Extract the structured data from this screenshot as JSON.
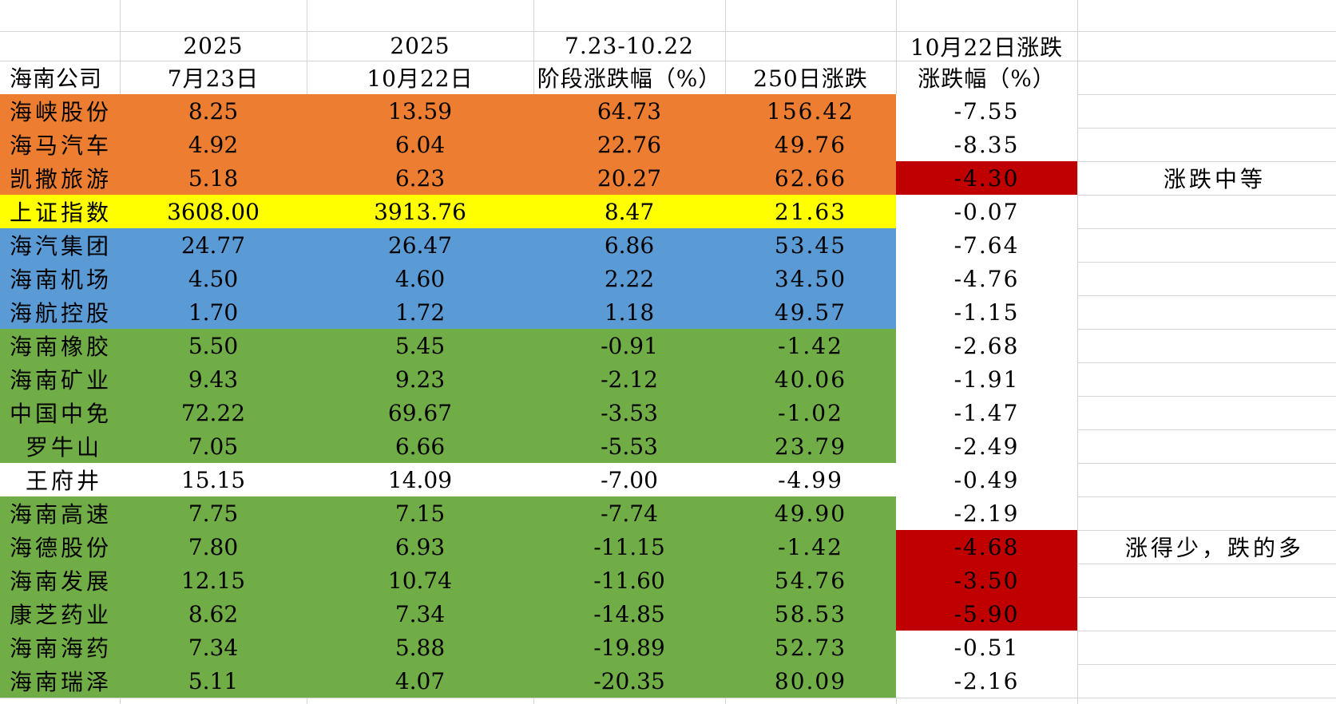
{
  "header": {
    "row1": [
      "",
      "2025",
      "2025",
      "7.23-10.22",
      "",
      "10月22日涨跌"
    ],
    "row2": [
      "海南公司",
      "7月23日",
      "10月22日",
      "阶段涨跌幅（%）",
      "250日涨跌",
      "涨跌幅（%）"
    ]
  },
  "rows": [
    {
      "name": "海峡股份",
      "v1": "8.25",
      "v2": "13.59",
      "v3": "64.73",
      "v4": "156.42",
      "v5": "-7.55",
      "fill": "#ED7D31",
      "v5_fill": "#FFFFFF"
    },
    {
      "name": "海马汽车",
      "v1": "4.92",
      "v2": "6.04",
      "v3": "22.76",
      "v4": "49.76",
      "v5": "-8.35",
      "fill": "#ED7D31",
      "v5_fill": "#FFFFFF"
    },
    {
      "name": "凯撒旅游",
      "v1": "5.18",
      "v2": "6.23",
      "v3": "20.27",
      "v4": "62.66",
      "v5": "-4.30",
      "fill": "#ED7D31",
      "v5_fill": "#C00000"
    },
    {
      "name": "上证指数",
      "v1": "3608.00",
      "v2": "3913.76",
      "v3": "8.47",
      "v4": "21.63",
      "v5": "-0.07",
      "fill": "#FFFF00",
      "v5_fill": "#FFFFFF"
    },
    {
      "name": "海汽集团",
      "v1": "24.77",
      "v2": "26.47",
      "v3": "6.86",
      "v4": "53.45",
      "v5": "-7.64",
      "fill": "#5B9BD5",
      "v5_fill": "#FFFFFF"
    },
    {
      "name": "海南机场",
      "v1": "4.50",
      "v2": "4.60",
      "v3": "2.22",
      "v4": "34.50",
      "v5": "-4.76",
      "fill": "#5B9BD5",
      "v5_fill": "#FFFFFF"
    },
    {
      "name": "海航控股",
      "v1": "1.70",
      "v2": "1.72",
      "v3": "1.18",
      "v4": "49.57",
      "v5": "-1.15",
      "fill": "#5B9BD5",
      "v5_fill": "#FFFFFF"
    },
    {
      "name": "海南橡胶",
      "v1": "5.50",
      "v2": "5.45",
      "v3": "-0.91",
      "v4": "-1.42",
      "v5": "-2.68",
      "fill": "#70AD47",
      "v5_fill": "#FFFFFF"
    },
    {
      "name": "海南矿业",
      "v1": "9.43",
      "v2": "9.23",
      "v3": "-2.12",
      "v4": "40.06",
      "v5": "-1.91",
      "fill": "#70AD47",
      "v5_fill": "#FFFFFF"
    },
    {
      "name": "中国中免",
      "v1": "72.22",
      "v2": "69.67",
      "v3": "-3.53",
      "v4": "-1.02",
      "v5": "-1.47",
      "fill": "#70AD47",
      "v5_fill": "#FFFFFF"
    },
    {
      "name": "罗牛山",
      "v1": "7.05",
      "v2": "6.66",
      "v3": "-5.53",
      "v4": "23.79",
      "v5": "-2.49",
      "fill": "#70AD47",
      "v5_fill": "#FFFFFF"
    },
    {
      "name": "王府井",
      "v1": "15.15",
      "v2": "14.09",
      "v3": "-7.00",
      "v4": "-4.99",
      "v5": "-0.49",
      "fill": "#FFFFFF",
      "v5_fill": "#FFFFFF"
    },
    {
      "name": "海南高速",
      "v1": "7.75",
      "v2": "7.15",
      "v3": "-7.74",
      "v4": "49.90",
      "v5": "-2.19",
      "fill": "#70AD47",
      "v5_fill": "#FFFFFF"
    },
    {
      "name": "海德股份",
      "v1": "7.80",
      "v2": "6.93",
      "v3": "-11.15",
      "v4": "-1.42",
      "v5": "-4.68",
      "fill": "#70AD47",
      "v5_fill": "#C00000"
    },
    {
      "name": "海南发展",
      "v1": "12.15",
      "v2": "10.74",
      "v3": "-11.60",
      "v4": "54.76",
      "v5": "-3.50",
      "fill": "#70AD47",
      "v5_fill": "#C00000"
    },
    {
      "name": "康芝药业",
      "v1": "8.62",
      "v2": "7.34",
      "v3": "-14.85",
      "v4": "58.53",
      "v5": "-5.90",
      "fill": "#70AD47",
      "v5_fill": "#C00000"
    },
    {
      "name": "海南海药",
      "v1": "7.34",
      "v2": "5.88",
      "v3": "-19.89",
      "v4": "52.73",
      "v5": "-0.51",
      "fill": "#70AD47",
      "v5_fill": "#FFFFFF"
    },
    {
      "name": "海南瑞泽",
      "v1": "5.11",
      "v2": "4.07",
      "v3": "-20.35",
      "v4": "80.09",
      "v5": "-2.16",
      "fill": "#70AD47",
      "v5_fill": "#FFFFFF"
    }
  ],
  "notes": [
    {
      "row": 2,
      "text": "涨跌中等"
    },
    {
      "row": 13,
      "text": "涨得少，跌的多"
    }
  ]
}
